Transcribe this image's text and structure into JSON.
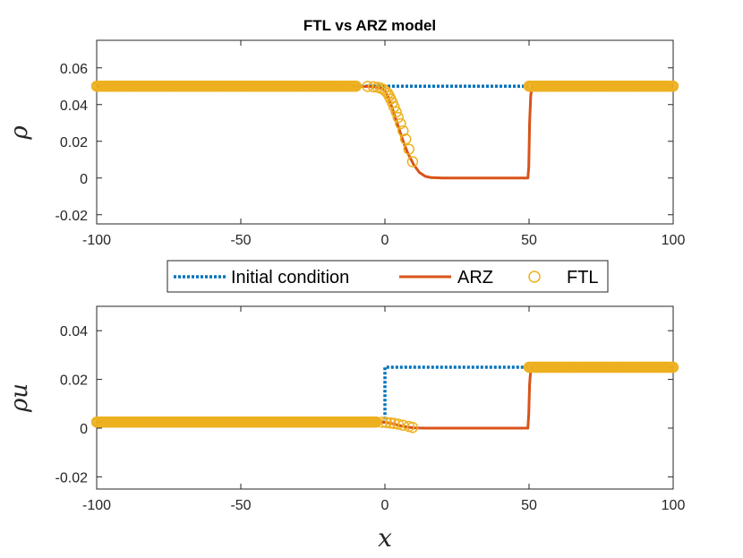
{
  "chart_data": [
    {
      "type": "line",
      "title": "FTL vs ARZ model",
      "xlabel": "",
      "ylabel": "ρ",
      "xlim": [
        -100,
        100
      ],
      "ylim": [
        -0.025,
        0.075
      ],
      "xticks": [
        -100,
        -50,
        0,
        50,
        100
      ],
      "xtick_labels": [
        "-100",
        "-50",
        "0",
        "50",
        "100"
      ],
      "yticks": [
        -0.02,
        0,
        0.02,
        0.04,
        0.06
      ],
      "ytick_labels": [
        "-0.02",
        "0",
        "0.02",
        "0.04",
        "0.06"
      ],
      "grid": false,
      "series": [
        {
          "name": "Initial condition",
          "style": "dotted",
          "color": "#0072BD",
          "x": [
            -100,
            0,
            0,
            50,
            50,
            100
          ],
          "y": [
            0.05,
            0.05,
            0.05,
            0.05,
            0.05,
            0.05
          ]
        },
        {
          "name": "ARZ",
          "style": "solid",
          "color": "#D95319",
          "x": [
            -100,
            -6,
            -3,
            -1,
            0,
            1,
            2,
            3,
            4,
            5,
            6,
            7,
            8,
            10,
            12,
            14,
            16,
            20,
            30,
            49.6,
            49.9,
            50.2,
            50.6,
            51,
            100
          ],
          "y": [
            0.05,
            0.0499,
            0.0495,
            0.0488,
            0.0476,
            0.0445,
            0.0405,
            0.0358,
            0.031,
            0.0262,
            0.0215,
            0.0172,
            0.0133,
            0.0072,
            0.003,
            0.0009,
            0.0002,
            0.0,
            0.0,
            0.0,
            0.006,
            0.03,
            0.045,
            0.0495,
            0.05
          ]
        },
        {
          "name": "FTL",
          "style": "circles",
          "color": "#EDB120",
          "x": [
            -100,
            -95,
            -90,
            -85,
            -80,
            -75,
            -70,
            -65,
            -60,
            -55,
            -50,
            -45,
            -40,
            -35,
            -30,
            -25,
            -20,
            -15,
            -10,
            -6,
            -4,
            -2.5,
            -1.5,
            -0.5,
            0.3,
            1,
            1.5,
            2,
            2.6,
            3.2,
            3.9,
            4.6,
            5.4,
            6.3,
            7.2,
            8.3,
            9.6,
            50,
            55,
            60,
            65,
            70,
            75,
            80,
            85,
            90,
            95,
            100
          ],
          "y": [
            0.05,
            0.05,
            0.05,
            0.05,
            0.05,
            0.05,
            0.05,
            0.05,
            0.05,
            0.05,
            0.05,
            0.05,
            0.05,
            0.05,
            0.05,
            0.05,
            0.05,
            0.05,
            0.05,
            0.0499,
            0.0497,
            0.0494,
            0.0489,
            0.0482,
            0.0472,
            0.046,
            0.0446,
            0.043,
            0.041,
            0.0387,
            0.036,
            0.033,
            0.0296,
            0.0257,
            0.0212,
            0.0157,
            0.0089,
            0.05,
            0.05,
            0.05,
            0.05,
            0.05,
            0.05,
            0.05,
            0.05,
            0.05,
            0.05,
            0.05
          ]
        }
      ]
    },
    {
      "type": "line",
      "title": "",
      "xlabel": "x",
      "ylabel": "ρu",
      "xlim": [
        -100,
        100
      ],
      "ylim": [
        -0.025,
        0.05
      ],
      "xticks": [
        -100,
        -50,
        0,
        50,
        100
      ],
      "xtick_labels": [
        "-100",
        "-50",
        "0",
        "50",
        "100"
      ],
      "yticks": [
        -0.02,
        0,
        0.02,
        0.04
      ],
      "ytick_labels": [
        "-0.02",
        "0",
        "0.02",
        "0.04"
      ],
      "grid": false,
      "series": [
        {
          "name": "Initial condition",
          "style": "dotted",
          "color": "#0072BD",
          "x": [
            -100,
            0,
            0,
            50,
            50,
            100
          ],
          "y": [
            0.0025,
            0.0025,
            0.025,
            0.025,
            0.025,
            0.025
          ]
        },
        {
          "name": "ARZ",
          "style": "solid",
          "color": "#D95319",
          "x": [
            -100,
            -2,
            0,
            2,
            4,
            6,
            8,
            10,
            14,
            20,
            49.6,
            49.9,
            50.2,
            50.6,
            51,
            100
          ],
          "y": [
            0.0025,
            0.0025,
            0.0024,
            0.002,
            0.0014,
            0.0008,
            0.0004,
            0.0001,
            0.0,
            0.0,
            0.0,
            0.006,
            0.018,
            0.024,
            0.025,
            0.025
          ]
        },
        {
          "name": "FTL",
          "style": "circles",
          "color": "#EDB120",
          "x": [
            -100,
            -95,
            -90,
            -85,
            -80,
            -75,
            -70,
            -65,
            -60,
            -55,
            -50,
            -45,
            -40,
            -35,
            -30,
            -25,
            -20,
            -15,
            -10,
            -6,
            -3,
            -1,
            0.5,
            2,
            3.2,
            4.6,
            6.3,
            8.3,
            9.6,
            50,
            55,
            60,
            65,
            70,
            75,
            80,
            85,
            90,
            95,
            100
          ],
          "y": [
            0.0025,
            0.0025,
            0.0025,
            0.0025,
            0.0025,
            0.0025,
            0.0025,
            0.0025,
            0.0025,
            0.0025,
            0.0025,
            0.0025,
            0.0025,
            0.0025,
            0.0025,
            0.0025,
            0.0025,
            0.0025,
            0.0025,
            0.0025,
            0.0025,
            0.0024,
            0.0023,
            0.0021,
            0.0019,
            0.0016,
            0.0012,
            0.0007,
            0.0003,
            0.025,
            0.025,
            0.025,
            0.025,
            0.025,
            0.025,
            0.025,
            0.025,
            0.025,
            0.025,
            0.025
          ]
        }
      ]
    }
  ],
  "legend": {
    "position": "between-panels",
    "entries": [
      "Initial condition",
      "ARZ",
      "FTL"
    ]
  }
}
